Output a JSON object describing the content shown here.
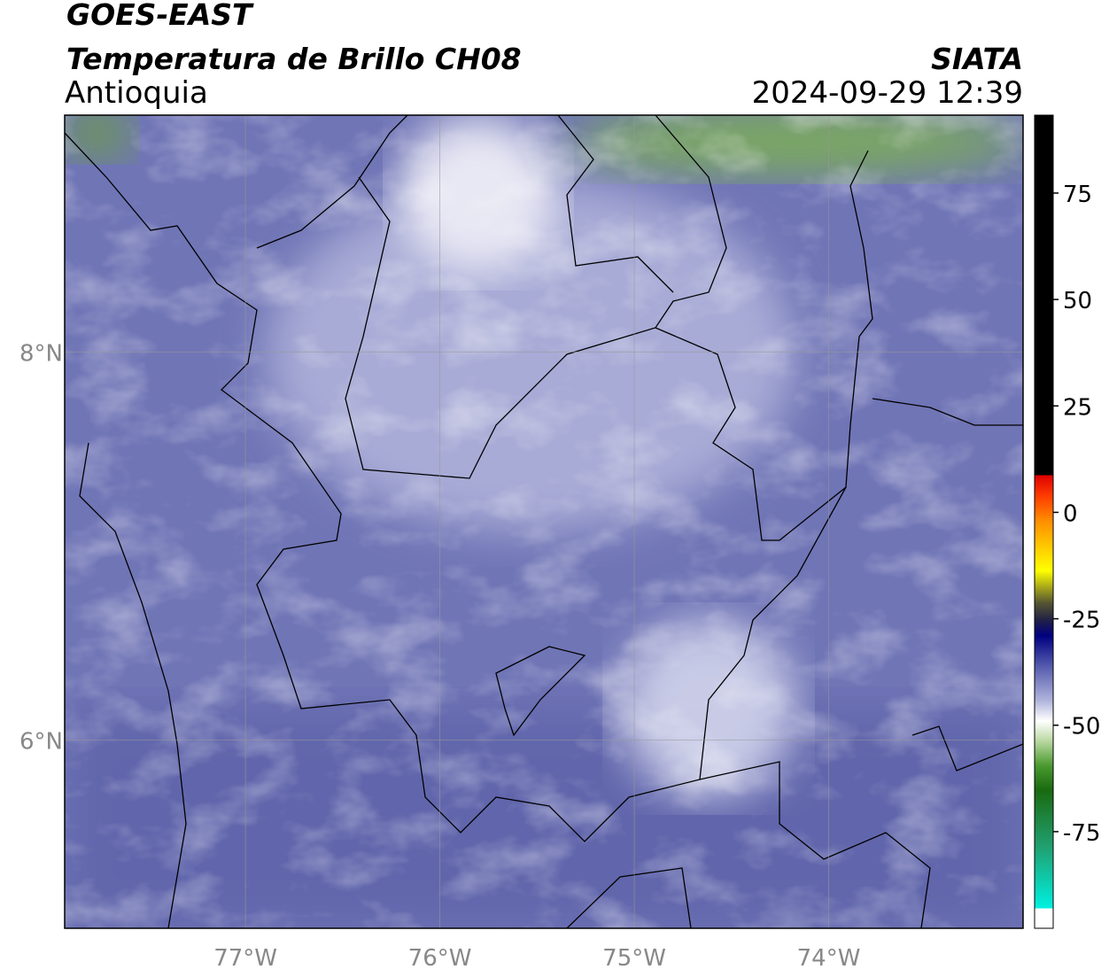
{
  "header": {
    "satellite": "GOES-EAST",
    "product": "Temperatura de Brillo CH08",
    "region": "Antioquia",
    "agency": "SIATA",
    "datetime": "2024-09-29 12:39"
  },
  "map": {
    "lonlim": [
      -77.93,
      -73.0
    ],
    "latlim": [
      5.03,
      9.22
    ],
    "lonticks": [
      {
        "value": -77,
        "label": "77°W"
      },
      {
        "value": -76,
        "label": "76°W"
      },
      {
        "value": -75,
        "label": "75°W"
      },
      {
        "value": -74,
        "label": "74°W"
      }
    ],
    "latticks": [
      {
        "value": 8,
        "label": "8°N"
      },
      {
        "value": 6,
        "label": "6°N"
      }
    ],
    "grid": true
  },
  "colorbar": {
    "lim": [
      -97.7,
      93.3
    ],
    "ticks": [
      -75,
      -50,
      -25,
      0,
      25,
      50,
      75
    ]
  }
}
